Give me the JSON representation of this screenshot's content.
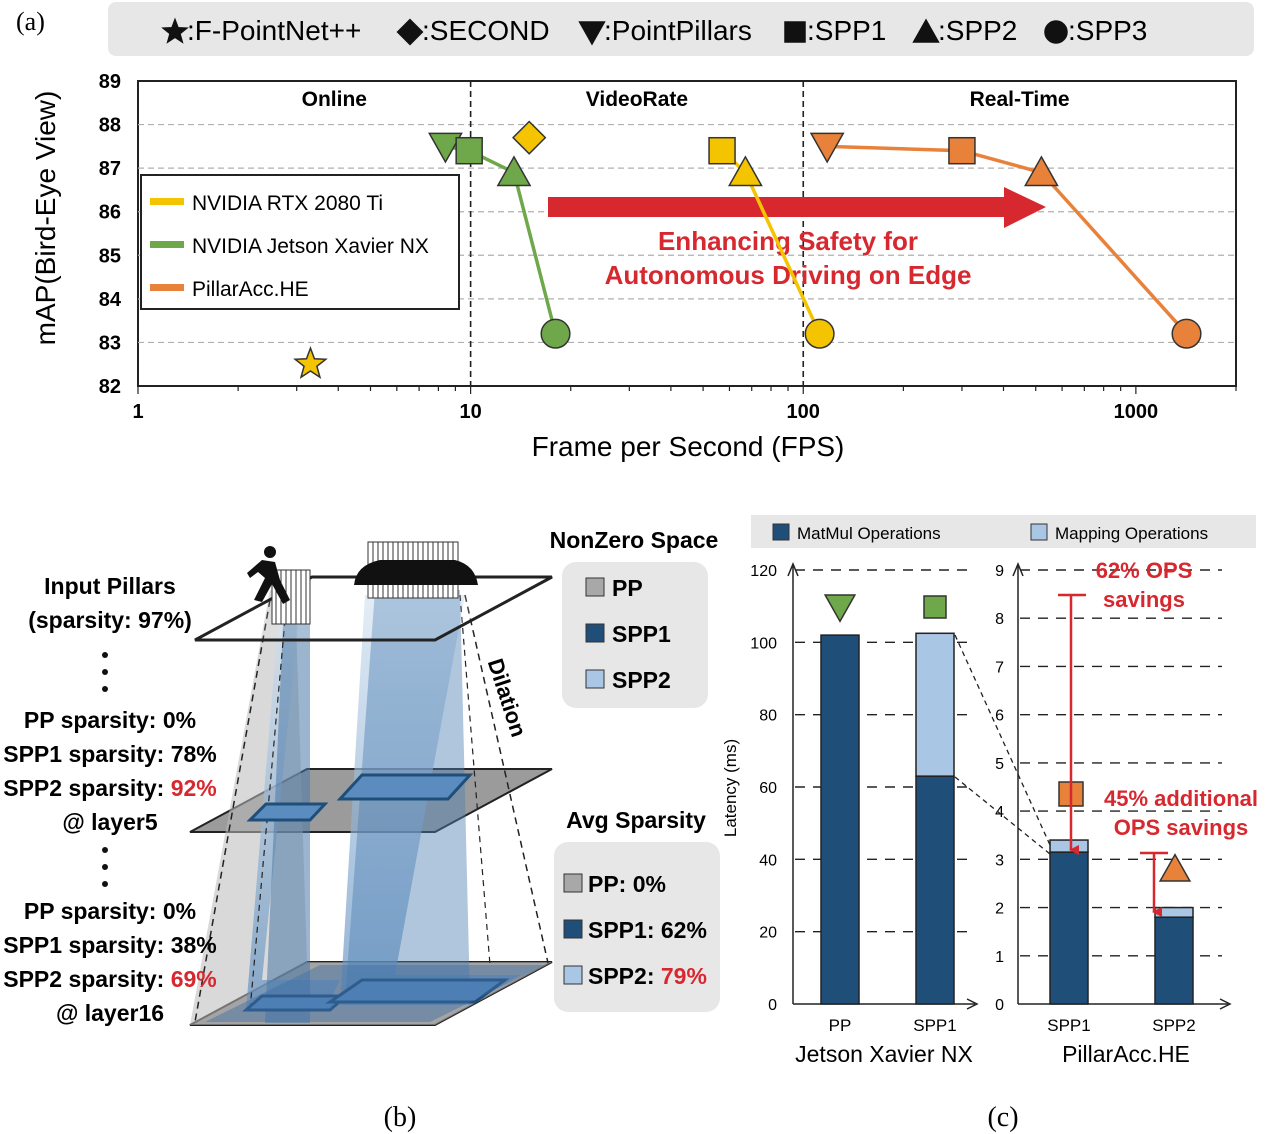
{
  "panel_labels": {
    "a": "(a)",
    "b": "(b)",
    "c": "(c)"
  },
  "colors": {
    "yellow": "#f5c400",
    "green": "#6fa84a",
    "orange": "#e8813a",
    "red": "#d7282f",
    "dark_blue": "#1f4e79",
    "light_blue": "#a9c6e5",
    "grey_box": "#a8a8a8"
  },
  "chart_a": {
    "legend_top": [
      {
        "icon": "star",
        "label": ":F-PointNet++"
      },
      {
        "icon": "diamond",
        "label": ":SECOND"
      },
      {
        "icon": "triangle-down",
        "label": ":PointPillars"
      },
      {
        "icon": "square",
        "label": ":SPP1"
      },
      {
        "icon": "triangle-up",
        "label": ":SPP2"
      },
      {
        "icon": "circle",
        "label": ":SPP3"
      }
    ],
    "legend_hw": [
      "NVIDIA RTX 2080 Ti",
      "NVIDIA Jetson Xavier NX",
      "PillarAcc.HE"
    ],
    "regions": [
      "Online",
      "VideoRate",
      "Real-Time"
    ],
    "arrow_text": [
      "Enhancing Safety for",
      "Autonomous Driving on Edge"
    ]
  },
  "panel_b": {
    "input_pillars": [
      "Input Pillars",
      "(sparsity: 97%)"
    ],
    "layer5": [
      {
        "text": "PP sparsity: 0%",
        "highlight": ""
      },
      {
        "text": "SPP1 sparsity: 78%",
        "highlight": ""
      },
      {
        "text": "SPP2 sparsity: ",
        "highlight": "92%"
      },
      {
        "text": "@ layer5",
        "highlight": ""
      }
    ],
    "layer16": [
      {
        "text": "PP sparsity: 0%",
        "highlight": ""
      },
      {
        "text": "SPP1 sparsity: 38%",
        "highlight": ""
      },
      {
        "text": "SPP2 sparsity: ",
        "highlight": "69%"
      },
      {
        "text": "@ layer16",
        "highlight": ""
      }
    ],
    "dilation": "Dilation",
    "nonzero_title": "NonZero Space",
    "nonzero_items": [
      "PP",
      "SPP1",
      "SPP2"
    ],
    "avg_title": "Avg Sparsity",
    "avg_items": [
      {
        "text": "PP: 0%",
        "highlight": ""
      },
      {
        "text": "SPP1: 62%",
        "highlight": ""
      },
      {
        "text": "SPP2: ",
        "highlight": "79%"
      }
    ]
  },
  "chart_data": [
    {
      "type": "scatter",
      "title": "",
      "xlabel": "Frame per Second (FPS)",
      "ylabel": "mAP(Bird-Eye View)",
      "xscale": "log",
      "xlim": [
        1,
        2000
      ],
      "ylim": [
        82,
        89
      ],
      "xticks": [
        1,
        10,
        100,
        1000
      ],
      "yticks": [
        82,
        83,
        84,
        85,
        86,
        87,
        88,
        89
      ],
      "region_boundaries": [
        10,
        100
      ],
      "series": [
        {
          "name": "F-PointNet++",
          "color": "yellow",
          "points": [
            {
              "x": 3.3,
              "y": 82.5,
              "marker": "star"
            }
          ]
        },
        {
          "name": "SECOND",
          "color": "yellow",
          "points": [
            {
              "x": 15,
              "y": 87.7,
              "marker": "diamond"
            }
          ]
        },
        {
          "name": "NVIDIA RTX 2080 Ti",
          "color": "yellow",
          "points": [
            {
              "x": 57,
              "y": 87.4,
              "marker": "square"
            },
            {
              "x": 67,
              "y": 86.9,
              "marker": "triangle-up"
            },
            {
              "x": 112,
              "y": 83.2,
              "marker": "circle"
            }
          ]
        },
        {
          "name": "NVIDIA Jetson Xavier NX",
          "color": "green",
          "points": [
            {
              "x": 8.4,
              "y": 87.5,
              "marker": "triangle-down"
            },
            {
              "x": 9.9,
              "y": 87.4,
              "marker": "square"
            },
            {
              "x": 13.5,
              "y": 86.9,
              "marker": "triangle-up"
            },
            {
              "x": 18,
              "y": 83.2,
              "marker": "circle"
            }
          ]
        },
        {
          "name": "PillarAcc.HE",
          "color": "orange",
          "points": [
            {
              "x": 118,
              "y": 87.5,
              "marker": "triangle-down"
            },
            {
              "x": 300,
              "y": 87.4,
              "marker": "square"
            },
            {
              "x": 520,
              "y": 86.9,
              "marker": "triangle-up"
            },
            {
              "x": 1420,
              "y": 83.2,
              "marker": "circle"
            }
          ]
        }
      ]
    },
    {
      "type": "bar",
      "stacked": true,
      "title": "",
      "ylabel": "Latency (ms)",
      "legend": [
        "MatMul Operations",
        "Mapping Operations"
      ],
      "groups": [
        {
          "name": "Jetson Xavier NX",
          "ylim": [
            0,
            120
          ],
          "yticks": [
            0,
            20,
            40,
            60,
            80,
            100,
            120
          ],
          "categories": [
            "PP",
            "SPP1"
          ],
          "series": [
            {
              "name": "MatMul Operations",
              "values": [
                102,
                63
              ]
            },
            {
              "name": "Mapping Operations",
              "values": [
                0,
                39.5
              ]
            }
          ],
          "markers": [
            "triangle-down",
            "square"
          ]
        },
        {
          "name": "PillarAcc.HE",
          "ylim": [
            0,
            9
          ],
          "yticks": [
            0,
            1,
            2,
            3,
            4,
            5,
            6,
            7,
            8,
            9
          ],
          "categories": [
            "SPP1",
            "SPP2"
          ],
          "series": [
            {
              "name": "MatMul Operations",
              "values": [
                3.15,
                1.8
              ]
            },
            {
              "name": "Mapping Operations",
              "values": [
                0.25,
                0.2
              ]
            }
          ],
          "markers": [
            "square",
            "triangle-up"
          ]
        }
      ],
      "annotations": [
        "62% OPS savings",
        "45% additional OPS savings"
      ],
      "annotation_lines": [
        [
          "62% OPS",
          "savings"
        ],
        [
          "45% additional",
          "OPS savings"
        ]
      ]
    }
  ]
}
